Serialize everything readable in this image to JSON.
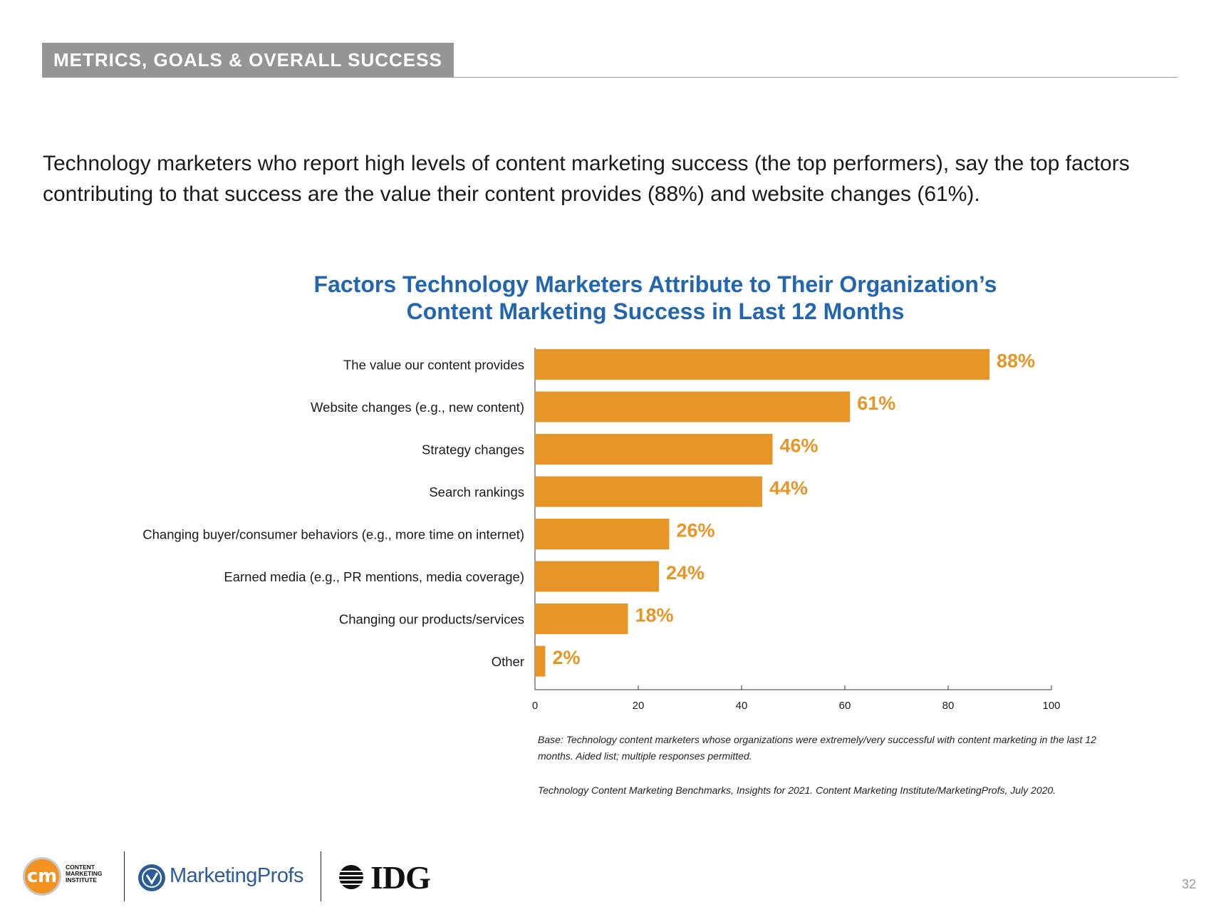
{
  "section_tag": "METRICS, GOALS & OVERALL SUCCESS",
  "intro": "Technology marketers who report high levels of content marketing success (the top performers), say the top factors contributing to that success are the value their content provides (88%) and website changes (61%).",
  "chart_data": {
    "type": "bar",
    "orientation": "horizontal",
    "title_lines": [
      "Factors Technology Marketers Attribute to Their Organization’s",
      "Content Marketing Success in Last 12 Months"
    ],
    "categories": [
      "The value our content provides",
      "Website changes (e.g., new content)",
      "Strategy changes",
      "Search rankings",
      "Changing buyer/consumer behaviors (e.g., more time on internet)",
      "Earned media (e.g., PR mentions, media coverage)",
      "Changing our products/services",
      "Other"
    ],
    "values": [
      88,
      61,
      46,
      44,
      26,
      24,
      18,
      2
    ],
    "value_labels": [
      "88%",
      "61%",
      "46%",
      "44%",
      "26%",
      "24%",
      "18%",
      "2%"
    ],
    "xlim": [
      0,
      100
    ],
    "xticks": [
      0,
      20,
      40,
      60,
      80,
      100
    ],
    "bar_color": "#e69526",
    "grid": false
  },
  "base_note": "Base: Technology content marketers whose organizations were extremely/very successful with content marketing in the last 12 months. Aided list; multiple responses permitted.",
  "source_note": "Technology Content Marketing Benchmarks, Insights for 2021. Content Marketing Institute/MarketingProfs, July 2020.",
  "footer": {
    "cmi_mark": "cm",
    "cmi_text": "CONTENT\nMARKETING\nINSTITUTE",
    "mp_text": "MarketingProfs",
    "idg_text": "IDG"
  },
  "page_number": "32",
  "colors": {
    "title": "#2166ae",
    "accent": "#e69526",
    "tag": "#959595"
  }
}
